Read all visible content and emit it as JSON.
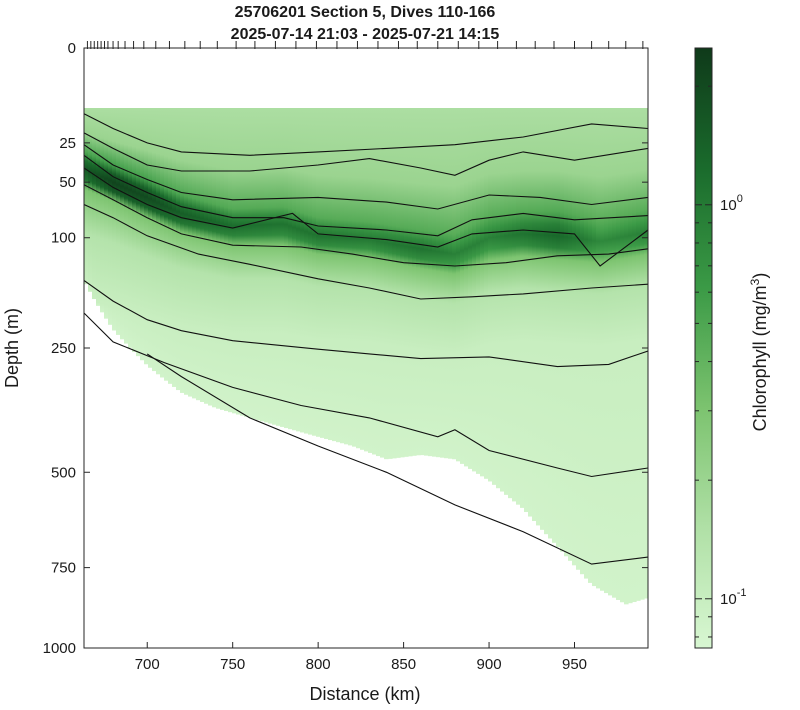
{
  "chart_data": {
    "type": "heatmap",
    "title": [
      "25706201 Section 5, Dives 110-166",
      "2025-07-14 21:03 - 2025-07-21 14:15"
    ],
    "xlabel": "Distance (km)",
    "ylabel": "Depth (m)",
    "colorbar_label": "Chlorophyll (mg/m",
    "colorbar_label_sup": "3",
    "colorbar_label_close": ")",
    "xlim": [
      663,
      993
    ],
    "ylim": [
      0,
      1000
    ],
    "y_scale": "sqrt",
    "x_ticks": [
      700,
      750,
      800,
      850,
      900,
      950
    ],
    "x_tick_labels": [
      "700",
      "750",
      "800",
      "850",
      "900",
      "950"
    ],
    "y_ticks": [
      0,
      25,
      50,
      100,
      250,
      500,
      750,
      1000
    ],
    "y_tick_labels": [
      "0",
      "25",
      "50",
      "100",
      "250",
      "500",
      "750",
      "1000"
    ],
    "colorbar": {
      "scale": "log",
      "range": [
        0.075,
        2.5
      ],
      "tick_values": [
        0.1,
        1.0
      ],
      "tick_labels": [
        {
          "base": "10",
          "exp": "-1"
        },
        {
          "base": "10",
          "exp": "0"
        }
      ],
      "minor_ticks": [
        0.08,
        0.09,
        0.2,
        0.3,
        0.4,
        0.5,
        0.6,
        0.7,
        0.8,
        0.9,
        2.0
      ],
      "colors": [
        "#d8f7d2",
        "#b0e0a6",
        "#7cc36f",
        "#3b9a46",
        "#1a6b2c",
        "#0f3a1a"
      ]
    },
    "dive_tick_distances": [
      665,
      667,
      669,
      671,
      673,
      675,
      677,
      680,
      683,
      687,
      692,
      698,
      705,
      713,
      722,
      731,
      741,
      752,
      763,
      775,
      787,
      799,
      811,
      823,
      835,
      847,
      858,
      870,
      882,
      894,
      905,
      916,
      927,
      938,
      950,
      960,
      970,
      980,
      990
    ],
    "data_top_depth": 10,
    "data_coverage_bottom": [
      [
        663,
        150
      ],
      [
        670,
        180
      ],
      [
        680,
        220
      ],
      [
        700,
        280
      ],
      [
        720,
        330
      ],
      [
        740,
        360
      ],
      [
        760,
        380
      ],
      [
        780,
        400
      ],
      [
        800,
        420
      ],
      [
        820,
        440
      ],
      [
        840,
        470
      ],
      [
        860,
        460
      ],
      [
        880,
        470
      ],
      [
        900,
        520
      ],
      [
        920,
        590
      ],
      [
        940,
        690
      ],
      [
        960,
        800
      ],
      [
        980,
        860
      ],
      [
        993,
        840
      ]
    ],
    "dcm_layer": [
      {
        "x": 663,
        "top": 30,
        "center": 40,
        "bottom": 55,
        "intensity": 1.6
      },
      {
        "x": 680,
        "top": 38,
        "center": 50,
        "bottom": 65,
        "intensity": 2.2
      },
      {
        "x": 700,
        "top": 48,
        "center": 62,
        "bottom": 80,
        "intensity": 2.0
      },
      {
        "x": 720,
        "top": 60,
        "center": 76,
        "bottom": 95,
        "intensity": 1.5
      },
      {
        "x": 750,
        "top": 72,
        "center": 88,
        "bottom": 108,
        "intensity": 1.2
      },
      {
        "x": 780,
        "top": 70,
        "center": 86,
        "bottom": 108,
        "intensity": 1.1
      },
      {
        "x": 800,
        "top": 80,
        "center": 98,
        "bottom": 118,
        "intensity": 1.1
      },
      {
        "x": 830,
        "top": 84,
        "center": 102,
        "bottom": 122,
        "intensity": 1.0
      },
      {
        "x": 860,
        "top": 92,
        "center": 112,
        "bottom": 135,
        "intensity": 1.1
      },
      {
        "x": 880,
        "top": 96,
        "center": 118,
        "bottom": 142,
        "intensity": 0.9
      },
      {
        "x": 900,
        "top": 78,
        "center": 100,
        "bottom": 125,
        "intensity": 0.9
      },
      {
        "x": 920,
        "top": 74,
        "center": 96,
        "bottom": 120,
        "intensity": 1.1
      },
      {
        "x": 940,
        "top": 74,
        "center": 98,
        "bottom": 124,
        "intensity": 1.3
      },
      {
        "x": 965,
        "top": 82,
        "center": 104,
        "bottom": 128,
        "intensity": 0.8
      },
      {
        "x": 993,
        "top": 72,
        "center": 94,
        "bottom": 118,
        "intensity": 0.9
      }
    ],
    "contours": [
      [
        [
          663,
          12
        ],
        [
          680,
          18
        ],
        [
          700,
          25
        ],
        [
          720,
          30
        ],
        [
          760,
          32
        ],
        [
          800,
          30
        ],
        [
          840,
          28
        ],
        [
          880,
          26
        ],
        [
          920,
          22
        ],
        [
          960,
          16
        ],
        [
          993,
          18
        ]
      ],
      [
        [
          663,
          20
        ],
        [
          680,
          28
        ],
        [
          700,
          38
        ],
        [
          720,
          42
        ],
        [
          760,
          42
        ],
        [
          800,
          38
        ],
        [
          830,
          34
        ],
        [
          860,
          40
        ],
        [
          880,
          45
        ],
        [
          900,
          35
        ],
        [
          920,
          30
        ],
        [
          950,
          35
        ],
        [
          993,
          28
        ]
      ],
      [
        [
          663,
          26
        ],
        [
          680,
          38
        ],
        [
          700,
          48
        ],
        [
          720,
          58
        ],
        [
          750,
          64
        ],
        [
          800,
          62
        ],
        [
          840,
          66
        ],
        [
          870,
          72
        ],
        [
          900,
          60
        ],
        [
          930,
          62
        ],
        [
          960,
          68
        ],
        [
          993,
          62
        ]
      ],
      [
        [
          663,
          32
        ],
        [
          680,
          46
        ],
        [
          700,
          58
        ],
        [
          720,
          70
        ],
        [
          750,
          80
        ],
        [
          780,
          80
        ],
        [
          800,
          88
        ],
        [
          840,
          92
        ],
        [
          870,
          98
        ],
        [
          890,
          82
        ],
        [
          920,
          76
        ],
        [
          950,
          82
        ],
        [
          993,
          78
        ]
      ],
      [
        [
          663,
          40
        ],
        [
          680,
          54
        ],
        [
          700,
          68
        ],
        [
          720,
          80
        ],
        [
          750,
          90
        ],
        [
          785,
          76
        ],
        [
          800,
          96
        ],
        [
          840,
          102
        ],
        [
          870,
          110
        ],
        [
          890,
          96
        ],
        [
          920,
          92
        ],
        [
          950,
          96
        ],
        [
          965,
          132
        ],
        [
          993,
          92
        ]
      ],
      [
        [
          663,
          52
        ],
        [
          680,
          64
        ],
        [
          700,
          80
        ],
        [
          720,
          96
        ],
        [
          750,
          108
        ],
        [
          790,
          110
        ],
        [
          820,
          118
        ],
        [
          850,
          128
        ],
        [
          880,
          132
        ],
        [
          910,
          128
        ],
        [
          940,
          120
        ],
        [
          970,
          118
        ],
        [
          993,
          112
        ]
      ],
      [
        [
          663,
          68
        ],
        [
          680,
          80
        ],
        [
          700,
          98
        ],
        [
          730,
          118
        ],
        [
          760,
          130
        ],
        [
          800,
          148
        ],
        [
          830,
          160
        ],
        [
          860,
          175
        ],
        [
          890,
          172
        ],
        [
          920,
          168
        ],
        [
          960,
          160
        ],
        [
          993,
          155
        ]
      ],
      [
        [
          663,
          150
        ],
        [
          680,
          178
        ],
        [
          700,
          205
        ],
        [
          720,
          222
        ],
        [
          750,
          238
        ],
        [
          800,
          252
        ],
        [
          830,
          260
        ],
        [
          860,
          268
        ],
        [
          900,
          265
        ],
        [
          940,
          282
        ],
        [
          970,
          278
        ],
        [
          993,
          255
        ]
      ],
      [
        [
          663,
          195
        ],
        [
          680,
          240
        ],
        [
          710,
          275
        ],
        [
          750,
          320
        ],
        [
          790,
          355
        ],
        [
          830,
          380
        ],
        [
          870,
          420
        ],
        [
          880,
          405
        ],
        [
          900,
          450
        ],
        [
          940,
          490
        ],
        [
          960,
          510
        ],
        [
          993,
          490
        ]
      ],
      [
        [
          700,
          260
        ],
        [
          720,
          300
        ],
        [
          760,
          380
        ],
        [
          800,
          440
        ],
        [
          840,
          500
        ],
        [
          880,
          580
        ],
        [
          920,
          650
        ],
        [
          960,
          740
        ],
        [
          993,
          720
        ]
      ]
    ]
  }
}
